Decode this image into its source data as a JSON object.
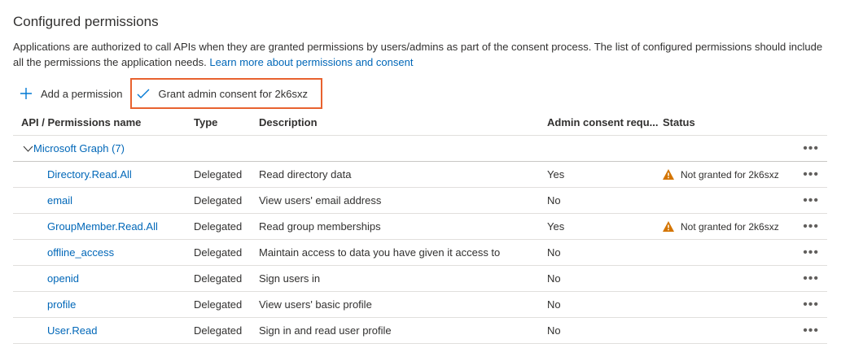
{
  "section": {
    "title": "Configured permissions",
    "description": "Applications are authorized to call APIs when they are granted permissions by users/admins as part of the consent process. The list of configured permissions should include all the permissions the application needs.",
    "learn_more": "Learn more about permissions and consent"
  },
  "toolbar": {
    "add_label": "Add a permission",
    "grant_label": "Grant admin consent for 2k6sxz",
    "highlight_color": "#e8622f"
  },
  "table": {
    "columns": [
      "API / Permissions name",
      "Type",
      "Description",
      "Admin consent requ...",
      "Status"
    ],
    "group": {
      "label": "Microsoft Graph (7)",
      "expanded": true
    },
    "rows": [
      {
        "name": "Directory.Read.All",
        "type": "Delegated",
        "description": "Read directory data",
        "admin": "Yes",
        "status": "Not granted for 2k6sxz"
      },
      {
        "name": "email",
        "type": "Delegated",
        "description": "View users' email address",
        "admin": "No",
        "status": ""
      },
      {
        "name": "GroupMember.Read.All",
        "type": "Delegated",
        "description": "Read group memberships",
        "admin": "Yes",
        "status": "Not granted for 2k6sxz"
      },
      {
        "name": "offline_access",
        "type": "Delegated",
        "description": "Maintain access to data you have given it access to",
        "admin": "No",
        "status": ""
      },
      {
        "name": "openid",
        "type": "Delegated",
        "description": "Sign users in",
        "admin": "No",
        "status": ""
      },
      {
        "name": "profile",
        "type": "Delegated",
        "description": "View users' basic profile",
        "admin": "No",
        "status": ""
      },
      {
        "name": "User.Read",
        "type": "Delegated",
        "description": "Sign in and read user profile",
        "admin": "No",
        "status": ""
      }
    ],
    "more_label": "•••"
  }
}
